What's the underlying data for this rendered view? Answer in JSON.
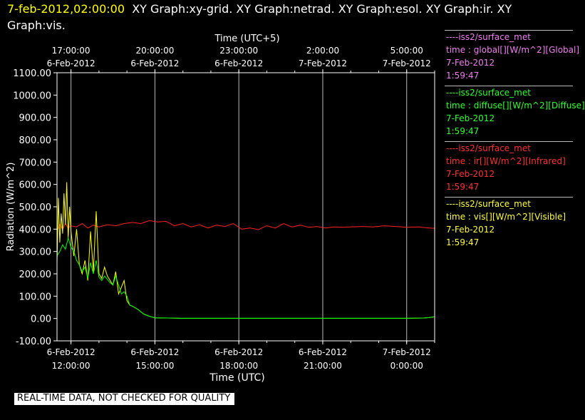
{
  "header": {
    "date": "7-feb-2012,02:00:00",
    "titles": "XY Graph:xy-grid.  XY Graph:netrad.  XY Graph:esol.  XY Graph:ir.  XY Graph:vis."
  },
  "colors": {
    "global": "#ee82ee",
    "diffuse": "#00ff00",
    "ir": "#ff2020",
    "vis": "#ffff00",
    "grid": "#bbbbbb",
    "axis": "#ffffff"
  },
  "legend": [
    {
      "source": "----iss2/surface_met",
      "var": "time : global[][W/m^2][Global]",
      "date": "7-Feb-2012",
      "time": "1:59:47",
      "color": "#ee82ee"
    },
    {
      "source": "----iss2/surface_met",
      "var": "time : diffuse[][W/m^2][Diffuse]",
      "date": "7-Feb-2012",
      "time": "1:59:47",
      "color": "#33ff33"
    },
    {
      "source": "----iss2/surface_met",
      "var": "time : ir[][W/m^2][Infrared]",
      "date": "7-Feb-2012",
      "time": "1:59:47",
      "color": "#ff3333"
    },
    {
      "source": "----iss2/surface_met",
      "var": "time : vis[][W/m^2][Visible]",
      "date": "7-Feb-2012",
      "time": "1:59:47",
      "color": "#ffff44"
    }
  ],
  "disclaimer": "REAL-TIME DATA, NOT CHECKED FOR QUALITY",
  "chart_data": {
    "type": "line",
    "xlabel": "Time (UTC)",
    "x2label": "Time (UTC+5)",
    "ylabel": "Radiation (W/m^2)",
    "ylim": [
      -100,
      1100
    ],
    "yticks": [
      -100,
      0,
      100,
      200,
      300,
      400,
      500,
      600,
      700,
      800,
      900,
      1000,
      1100
    ],
    "ytick_labels": [
      "-100.00",
      "0.00",
      "100.00",
      "200.00",
      "300.00",
      "400.00",
      "500.00",
      "600.00",
      "700.00",
      "800.00",
      "900.00",
      "1000.00",
      "1100.00"
    ],
    "xlim_hours_utc": [
      11.5,
      25.0
    ],
    "bottom_ticks": [
      {
        "h": 12,
        "line1": "6-Feb-2012",
        "line2": "12:00:00"
      },
      {
        "h": 15,
        "line1": "6-Feb-2012",
        "line2": "15:00:00"
      },
      {
        "h": 18,
        "line1": "6-Feb-2012",
        "line2": "18:00:00"
      },
      {
        "h": 21,
        "line1": "6-Feb-2012",
        "line2": "21:00:00"
      },
      {
        "h": 24,
        "line1": "7-Feb-2012",
        "line2": "0:00:00"
      }
    ],
    "top_ticks": [
      {
        "h": 12,
        "line1": "17:00:00",
        "line2": "6-Feb-2012"
      },
      {
        "h": 15,
        "line1": "20:00:00",
        "line2": "6-Feb-2012"
      },
      {
        "h": 18,
        "line1": "23:00:00",
        "line2": "6-Feb-2012"
      },
      {
        "h": 21,
        "line1": "2:00:00",
        "line2": "7-Feb-2012"
      },
      {
        "h": 24,
        "line1": "5:00:00",
        "line2": "7-Feb-2012"
      }
    ],
    "series": [
      {
        "name": "ir",
        "color": "#ff2020",
        "x": [
          11.5,
          11.6,
          11.7,
          11.8,
          11.9,
          12.0,
          12.2,
          12.4,
          12.6,
          12.8,
          13.0,
          13.3,
          13.6,
          13.9,
          14.2,
          14.5,
          14.8,
          15.1,
          15.4,
          15.7,
          16.0,
          16.3,
          16.6,
          16.9,
          17.2,
          17.5,
          17.8,
          18.1,
          18.4,
          18.7,
          19.0,
          19.3,
          19.6,
          19.9,
          20.2,
          20.5,
          20.8,
          21.1,
          21.4,
          21.7,
          22.0,
          22.4,
          22.8,
          23.2,
          23.6,
          24.0,
          24.4,
          24.8,
          25.0
        ],
        "values": [
          390,
          420,
          400,
          425,
          405,
          415,
          410,
          425,
          405,
          418,
          410,
          420,
          415,
          425,
          430,
          425,
          438,
          432,
          435,
          415,
          425,
          410,
          420,
          405,
          418,
          412,
          425,
          400,
          405,
          398,
          415,
          405,
          425,
          410,
          418,
          408,
          412,
          405,
          410,
          408,
          410,
          412,
          410,
          415,
          412,
          408,
          410,
          405,
          404
        ]
      },
      {
        "name": "vis",
        "color": "#ffff00",
        "x": [
          11.5,
          11.55,
          11.6,
          11.65,
          11.7,
          11.75,
          11.8,
          11.85,
          11.9,
          11.95,
          12.0,
          12.1,
          12.2,
          12.3,
          12.4,
          12.5,
          12.6,
          12.7,
          12.8,
          12.9,
          13.0,
          13.1,
          13.2,
          13.3,
          13.4,
          13.5,
          13.6,
          13.7,
          13.8,
          13.9,
          14.0,
          14.1,
          14.2,
          14.4,
          14.6,
          14.8,
          15.0,
          15.5,
          16.0,
          20.0,
          24.0,
          24.6,
          24.8,
          25.0
        ],
        "values": [
          250,
          540,
          340,
          470,
          380,
          560,
          420,
          610,
          360,
          500,
          390,
          280,
          400,
          240,
          200,
          260,
          170,
          390,
          210,
          480,
          200,
          180,
          230,
          190,
          170,
          150,
          210,
          110,
          140,
          170,
          80,
          60,
          55,
          40,
          20,
          10,
          3,
          2,
          1,
          1,
          1,
          2,
          4,
          8
        ]
      },
      {
        "name": "diffuse",
        "color": "#00ff00",
        "x": [
          11.5,
          11.6,
          11.7,
          11.8,
          11.9,
          12.0,
          12.1,
          12.2,
          12.3,
          12.4,
          12.5,
          12.6,
          12.7,
          12.8,
          12.9,
          13.0,
          13.1,
          13.2,
          13.3,
          13.4,
          13.5,
          13.6,
          13.7,
          13.8,
          13.9,
          14.0,
          14.1,
          14.2,
          14.4,
          14.6,
          14.8,
          15.0,
          15.5,
          16.0,
          20.0,
          24.0,
          24.6,
          24.8,
          25.0
        ],
        "values": [
          280,
          300,
          330,
          310,
          360,
          320,
          300,
          260,
          240,
          210,
          230,
          180,
          250,
          200,
          260,
          185,
          170,
          190,
          175,
          160,
          150,
          190,
          150,
          110,
          120,
          100,
          60,
          55,
          40,
          20,
          10,
          3,
          2,
          1,
          1,
          1,
          2,
          4,
          8
        ]
      }
    ]
  }
}
